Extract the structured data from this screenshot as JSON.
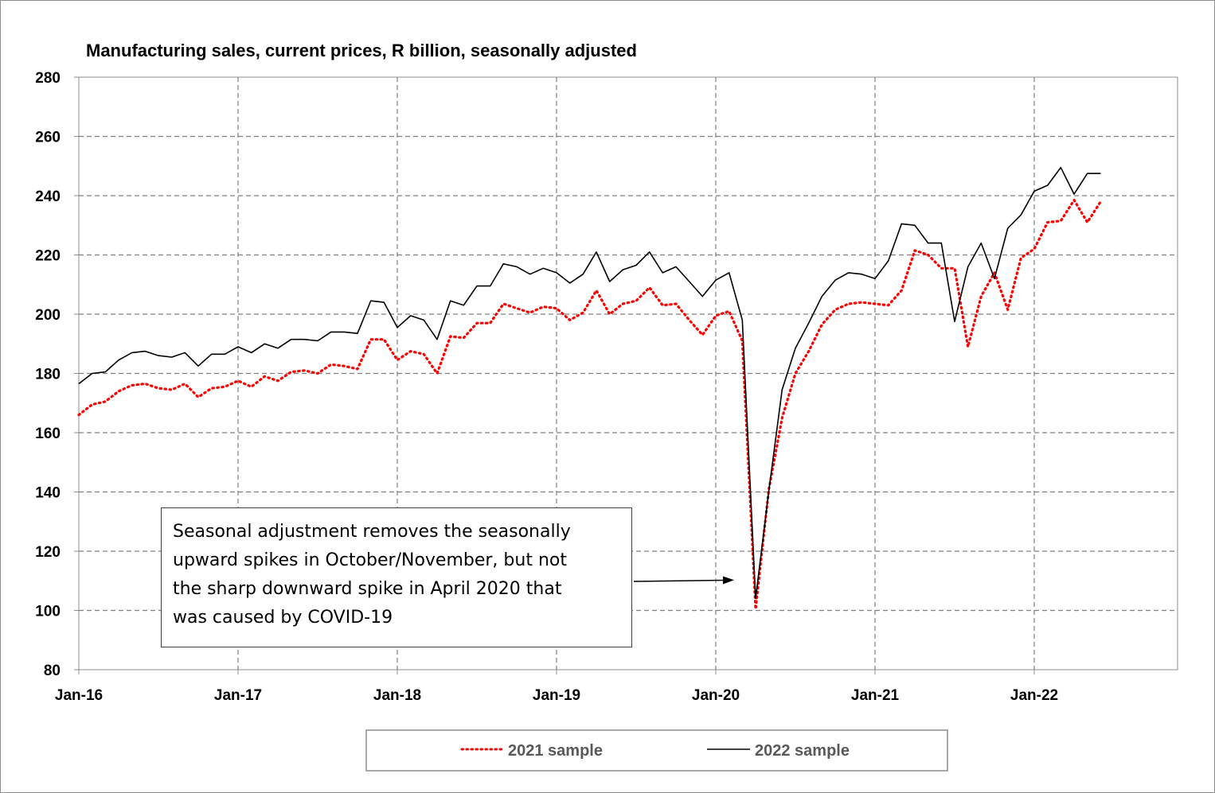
{
  "chart_data": {
    "type": "line",
    "title": "Manufacturing sales, current prices, R billion, seasonally adjusted",
    "xlabel": "",
    "ylabel": "",
    "ylim": [
      80,
      280
    ],
    "yticks": [
      80,
      100,
      120,
      140,
      160,
      180,
      200,
      220,
      240,
      260,
      280
    ],
    "x_months": 84,
    "xtick_labels": [
      "Jan-16",
      "Jan-17",
      "Jan-18",
      "Jan-19",
      "Jan-20",
      "Jan-21",
      "Jan-22"
    ],
    "xtick_months": [
      0,
      12,
      24,
      36,
      48,
      60,
      72
    ],
    "grid": "dashed",
    "legend_position": "bottom",
    "series": [
      {
        "name": "2021 sample",
        "color": "#ff0000",
        "style": "dotted",
        "values": [
          166,
          169.5,
          170.5,
          174,
          176,
          176.5,
          175,
          174.5,
          176.5,
          172,
          175,
          175.5,
          177.5,
          175.5,
          179,
          177.5,
          180.5,
          181,
          180,
          183,
          182.5,
          181.5,
          191.5,
          191.5,
          184.5,
          187.5,
          186.5,
          180,
          192.5,
          192,
          197,
          197,
          203.5,
          202,
          200.5,
          202.5,
          202,
          198,
          200.5,
          208,
          200,
          203.5,
          204.5,
          209,
          203,
          203.5,
          198,
          193,
          199.5,
          201,
          191,
          100.5,
          141,
          165,
          180,
          187.5,
          196.5,
          201.5,
          203.5,
          204,
          203.5,
          203,
          208,
          221.5,
          220,
          215.5,
          215.5,
          189,
          206,
          214,
          201.5,
          219,
          222,
          231,
          231.5,
          238.5,
          231,
          238
        ]
      },
      {
        "name": "2022 sample",
        "color": "#000000",
        "style": "solid",
        "values": [
          176.5,
          180,
          180.5,
          184.5,
          187,
          187.5,
          186,
          185.5,
          187,
          182.5,
          186.5,
          186.5,
          189,
          187,
          190,
          188.5,
          191.5,
          191.5,
          191,
          194,
          194,
          193.5,
          204.5,
          204,
          195.5,
          199.5,
          198,
          191.5,
          204.5,
          203,
          209.5,
          209.5,
          217,
          216,
          213.5,
          215.5,
          214,
          210.5,
          213.5,
          221,
          211,
          215,
          216.5,
          221,
          214,
          216,
          211,
          206,
          211.5,
          214,
          198,
          104,
          140.5,
          174.5,
          188.5,
          197,
          206,
          211.5,
          214,
          213.5,
          212,
          218,
          230.5,
          230,
          224,
          224,
          197.5,
          216,
          224,
          212,
          229,
          233.5,
          241.5,
          243.5,
          249.5,
          240.5,
          247.5,
          247.5
        ]
      }
    ],
    "annotation": {
      "lines": [
        "Seasonal adjustment removes the seasonally",
        "upward spikes in October/November, but not",
        "the sharp downward spike in April 2020 that",
        "was caused by COVID-19"
      ],
      "points_to_month": 50.5,
      "points_to_value": 110
    },
    "legend": {
      "entries": [
        "2021 sample",
        "2022 sample"
      ]
    }
  }
}
